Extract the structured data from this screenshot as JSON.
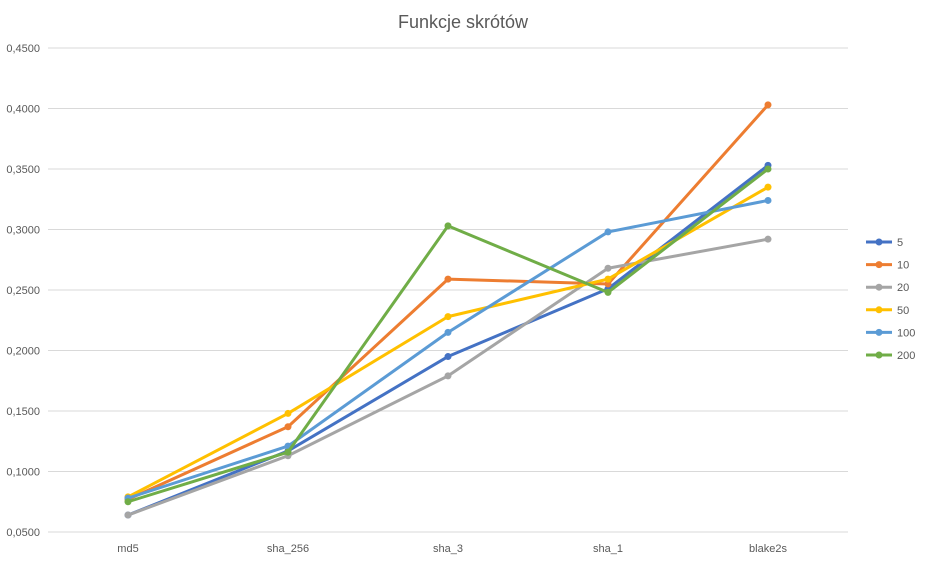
{
  "chart_data": {
    "type": "line",
    "title": "Funkcje skrótów",
    "xlabel": "",
    "ylabel": "",
    "categories": [
      "md5",
      "sha_256",
      "sha_3",
      "sha_1",
      "blake2s"
    ],
    "ylim": [
      0.05,
      0.45
    ],
    "yticks": [
      "0,0500",
      "0,1000",
      "0,1500",
      "0,2000",
      "0,2500",
      "0,3000",
      "0,3500",
      "0,4000",
      "0,4500"
    ],
    "ytick_values": [
      0.05,
      0.1,
      0.15,
      0.2,
      0.25,
      0.3,
      0.35,
      0.4,
      0.45
    ],
    "grid": true,
    "legend_position": "right",
    "series": [
      {
        "name": "5",
        "color": "#4472C4",
        "values": [
          0.064,
          0.117,
          0.195,
          0.251,
          0.353
        ]
      },
      {
        "name": "10",
        "color": "#ED7D31",
        "values": [
          0.077,
          0.137,
          0.259,
          0.255,
          0.403
        ]
      },
      {
        "name": "20",
        "color": "#A5A5A5",
        "values": [
          0.064,
          0.113,
          0.179,
          0.268,
          0.292
        ]
      },
      {
        "name": "50",
        "color": "#FFC000",
        "values": [
          0.079,
          0.148,
          0.228,
          0.259,
          0.335
        ]
      },
      {
        "name": "100",
        "color": "#5B9BD5",
        "values": [
          0.078,
          0.121,
          0.215,
          0.298,
          0.324
        ]
      },
      {
        "name": "200",
        "color": "#70AD47",
        "values": [
          0.075,
          0.116,
          0.303,
          0.248,
          0.35
        ]
      }
    ]
  }
}
